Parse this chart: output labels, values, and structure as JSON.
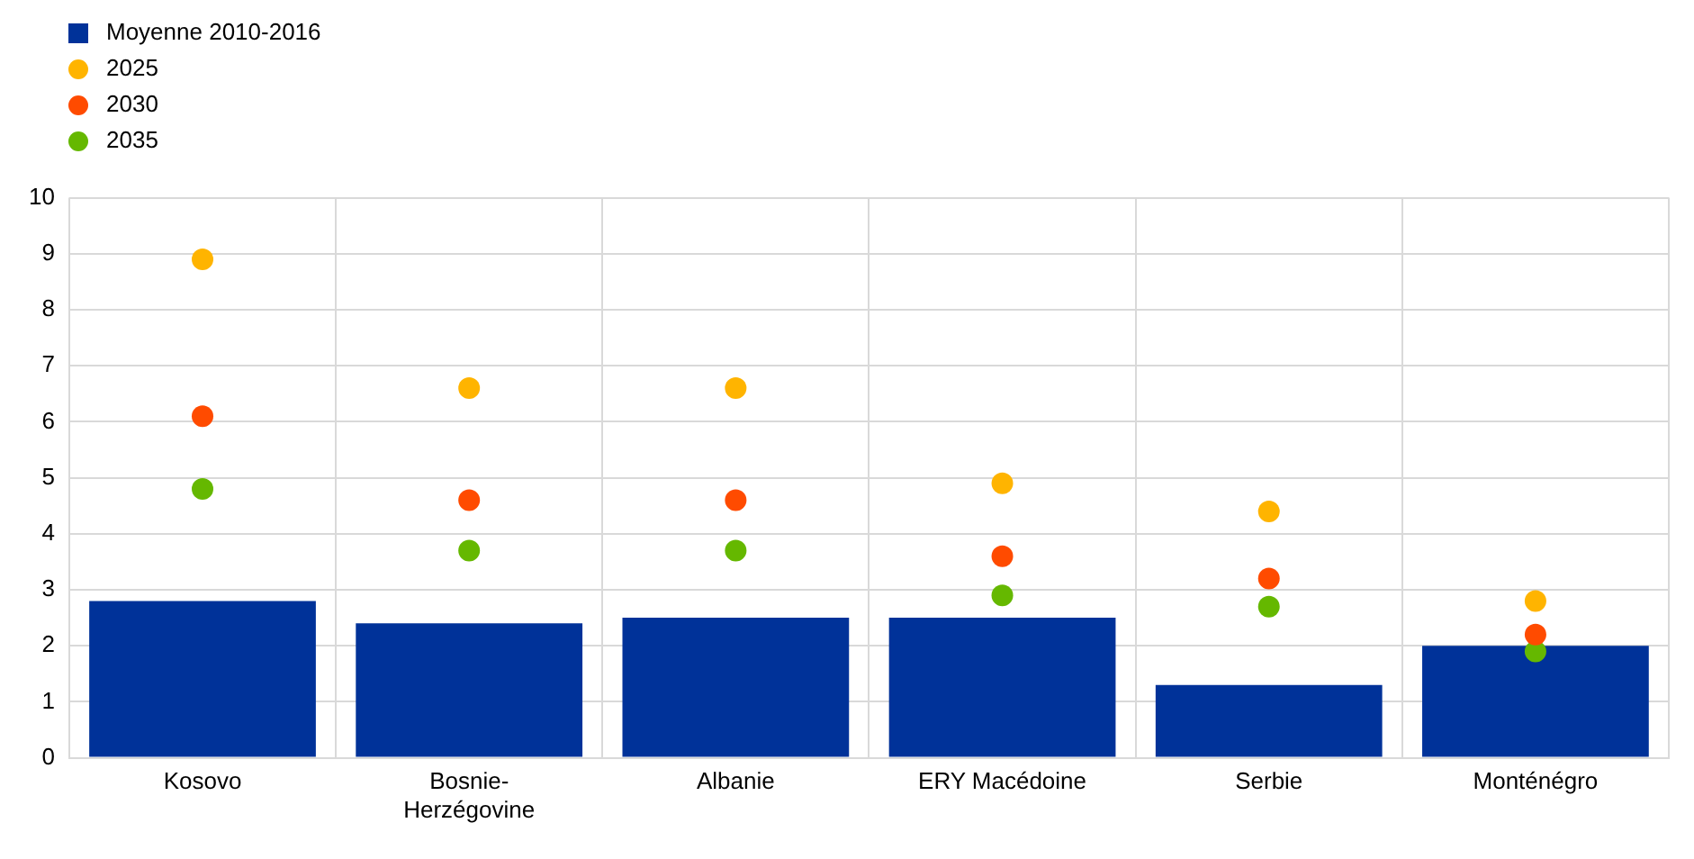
{
  "chart_data": {
    "type": "bar",
    "categories": [
      "Kosovo",
      "Bosnie-Herzégovine",
      "Albanie",
      "ERY Macédoine",
      "Serbie",
      "Monténégro"
    ],
    "series": [
      {
        "name": "Moyenne 2010-2016",
        "color": "#003299",
        "values": [
          2.8,
          2.4,
          2.5,
          2.5,
          1.3,
          2.0
        ]
      },
      {
        "name": "2025",
        "type": "scatter",
        "color": "#ffb400",
        "values": [
          8.9,
          6.6,
          6.6,
          4.9,
          4.4,
          2.8
        ]
      },
      {
        "name": "2030",
        "type": "scatter",
        "color": "#ff4b00",
        "values": [
          6.1,
          4.6,
          4.6,
          3.6,
          3.2,
          2.2
        ]
      },
      {
        "name": "2035",
        "type": "scatter",
        "color": "#65b800",
        "values": [
          4.8,
          3.7,
          3.7,
          2.9,
          2.7,
          1.9
        ]
      }
    ],
    "ylim": [
      0,
      10
    ],
    "yticks": [
      0,
      1,
      2,
      3,
      4,
      5,
      6,
      7,
      8,
      9,
      10
    ],
    "grid": true,
    "legend": "top left",
    "marker": "circle"
  }
}
